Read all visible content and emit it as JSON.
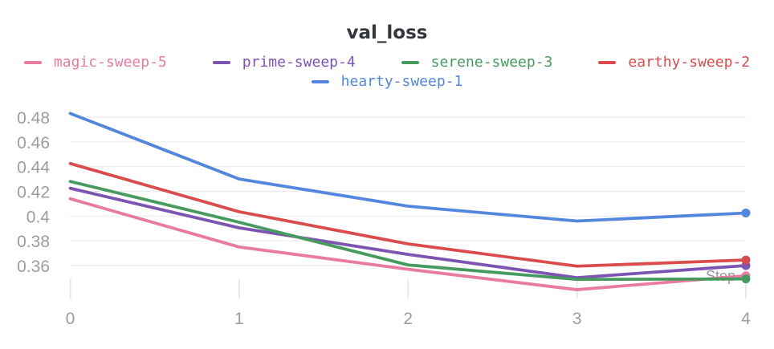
{
  "chart": {
    "title": "val_loss",
    "x_axis_label": "Step",
    "x_ticks": [
      "0",
      "1",
      "2",
      "3",
      "4"
    ],
    "y_ticks": [
      "0.48",
      "0.46",
      "0.44",
      "0.42",
      "0.4",
      "0.38",
      "0.36"
    ],
    "colors": {
      "grid": "#ebebeb",
      "tick": "#e6e6e6",
      "axis_label": "#9a9da3",
      "title": "#33373d"
    }
  },
  "legend": {
    "rows": [
      [
        {
          "label": "magic-sweep-5",
          "color": "#E87B9F"
        },
        {
          "label": "prime-sweep-4",
          "color": "#7D54B2"
        },
        {
          "label": "serene-sweep-3",
          "color": "#479A5F"
        },
        {
          "label": "earthy-sweep-2",
          "color": "#DA4C4C"
        }
      ],
      [
        {
          "label": "hearty-sweep-1",
          "color": "#5387DD"
        }
      ]
    ]
  },
  "chart_data": {
    "type": "line",
    "title": "val_loss",
    "xlabel": "Step",
    "ylabel": "",
    "x": [
      0,
      1,
      2,
      3,
      4
    ],
    "series": [
      {
        "name": "magic-sweep-5",
        "color": "#E87B9F",
        "values": [
          0.414,
          0.375,
          0.357,
          0.3405,
          0.3517
        ]
      },
      {
        "name": "prime-sweep-4",
        "color": "#7D54B2",
        "values": [
          0.4225,
          0.3905,
          0.369,
          0.3502,
          0.36
        ]
      },
      {
        "name": "serene-sweep-3",
        "color": "#479A5F",
        "values": [
          0.428,
          0.395,
          0.3605,
          0.3488,
          0.3492
        ]
      },
      {
        "name": "earthy-sweep-2",
        "color": "#DA4C4C",
        "values": [
          0.4425,
          0.4035,
          0.3775,
          0.3595,
          0.3645
        ]
      },
      {
        "name": "hearty-sweep-1",
        "color": "#5387DD",
        "values": [
          0.483,
          0.43,
          0.408,
          0.396,
          0.4025
        ]
      }
    ],
    "y_tick_values": [
      0.48,
      0.46,
      0.44,
      0.42,
      0.4,
      0.38,
      0.36
    ],
    "xlim": [
      0,
      4
    ],
    "ylim": [
      0.333,
      0.492
    ],
    "grid": "horizontal",
    "legend_position": "top",
    "end_markers": true
  }
}
